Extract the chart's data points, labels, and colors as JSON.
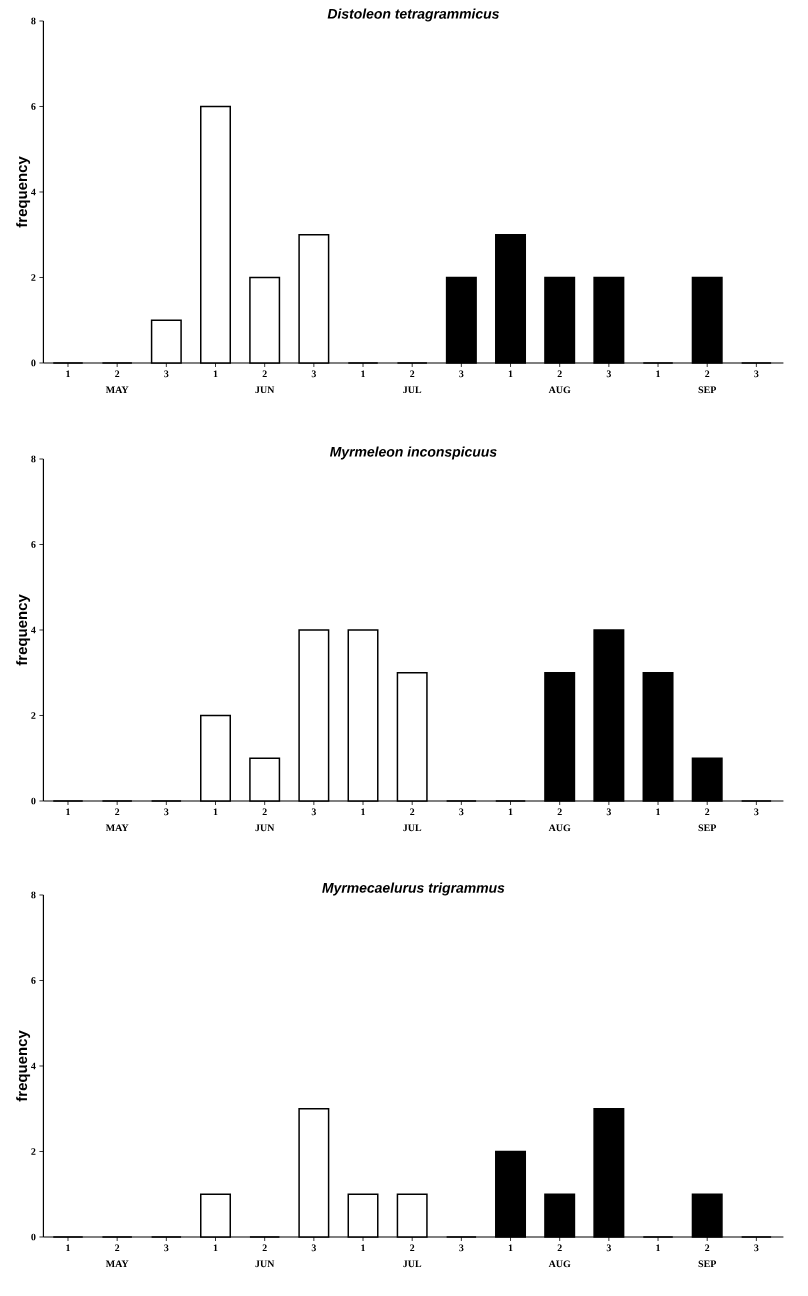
{
  "chart_data": [
    {
      "type": "bar",
      "title": "Distoleon tetragrammicus",
      "ylabel": "frequency",
      "categories": [
        "1",
        "2",
        "3",
        "1",
        "2",
        "3",
        "1",
        "2",
        "3",
        "1",
        "2",
        "3",
        "1",
        "2",
        "3"
      ],
      "values": [
        0,
        0,
        1,
        6,
        2,
        3,
        0,
        0,
        2,
        3,
        2,
        2,
        0,
        2,
        0
      ],
      "colors": [
        "#ffffff",
        "#ffffff",
        "#ffffff",
        "#ffffff",
        "#ffffff",
        "#ffffff",
        "#ffffff",
        "#ffffff",
        "#000000",
        "#000000",
        "#000000",
        "#000000",
        "#000000",
        "#000000",
        "#000000"
      ],
      "ylim": [
        0,
        8
      ],
      "yticks": [
        0,
        2,
        4,
        6,
        8
      ],
      "annotations": [
        "MAY",
        "JUN",
        "JUL",
        "AUG",
        "SEP"
      ]
    },
    {
      "type": "bar",
      "title": "Myrmeleon inconspicuus",
      "ylabel": "frequency",
      "categories": [
        "1",
        "2",
        "3",
        "1",
        "2",
        "3",
        "1",
        "2",
        "3",
        "1",
        "2",
        "3",
        "1",
        "2",
        "3"
      ],
      "values": [
        0,
        0,
        0,
        2,
        1,
        4,
        4,
        3,
        0,
        0,
        3,
        4,
        3,
        1,
        0
      ],
      "colors": [
        "#ffffff",
        "#ffffff",
        "#ffffff",
        "#ffffff",
        "#ffffff",
        "#ffffff",
        "#ffffff",
        "#ffffff",
        "#ffffff",
        "#000000",
        "#000000",
        "#000000",
        "#000000",
        "#000000",
        "#000000"
      ],
      "ylim": [
        0,
        8
      ],
      "yticks": [
        0,
        2,
        4,
        6,
        8
      ],
      "annotations": [
        "MAY",
        "JUN",
        "JUL",
        "AUG",
        "SEP"
      ]
    },
    {
      "type": "bar",
      "title": "Myrmecaelurus trigrammus",
      "ylabel": "frequency",
      "categories": [
        "1",
        "2",
        "3",
        "1",
        "2",
        "3",
        "1",
        "2",
        "3",
        "1",
        "2",
        "3",
        "1",
        "2",
        "3"
      ],
      "values": [
        0,
        0,
        0,
        1,
        0,
        3,
        1,
        1,
        0,
        2,
        1,
        3,
        0,
        1,
        0
      ],
      "colors": [
        "#ffffff",
        "#ffffff",
        "#ffffff",
        "#ffffff",
        "#ffffff",
        "#ffffff",
        "#ffffff",
        "#ffffff",
        "#ffffff",
        "#000000",
        "#000000",
        "#000000",
        "#000000",
        "#000000",
        "#000000"
      ],
      "ylim": [
        0,
        8
      ],
      "yticks": [
        0,
        2,
        4,
        6,
        8
      ],
      "annotations": [
        "MAY",
        "JUN",
        "JUL",
        "AUG",
        "SEP"
      ]
    }
  ]
}
